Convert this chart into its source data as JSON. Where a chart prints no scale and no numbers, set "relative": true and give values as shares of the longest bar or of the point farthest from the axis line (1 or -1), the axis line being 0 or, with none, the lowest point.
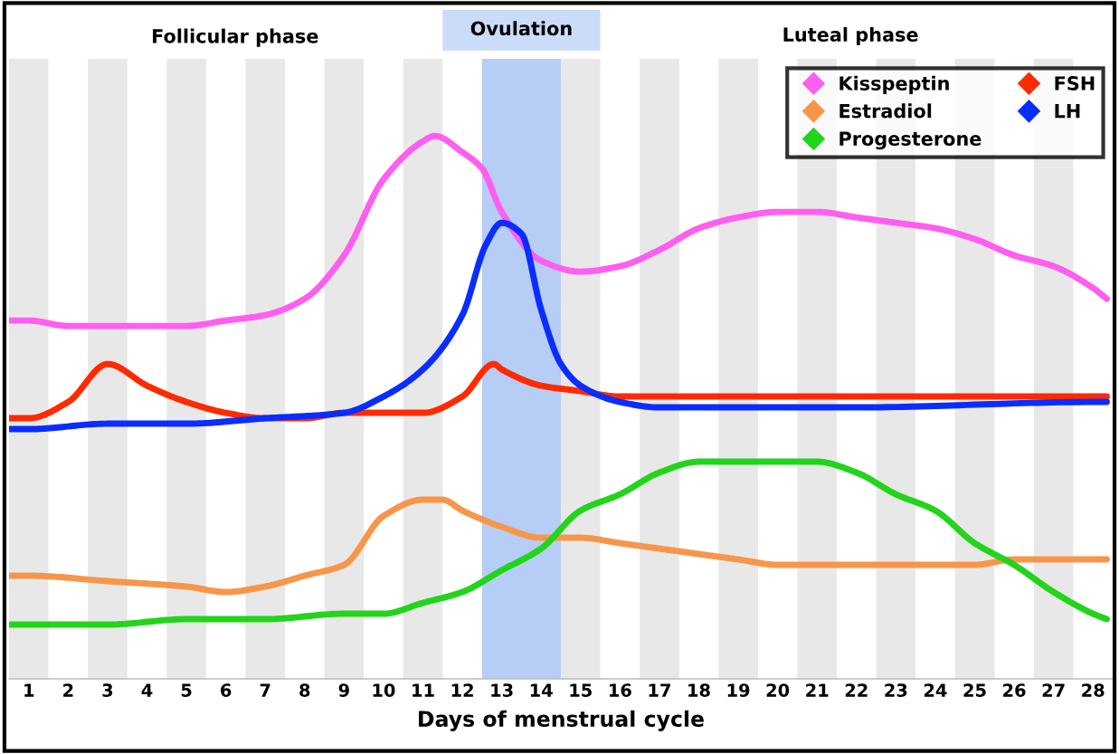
{
  "chart_data": {
    "type": "line",
    "relative": true,
    "xlabel": "Days of menstrual cycle",
    "annotations": [
      "Follicular phase",
      "Luteal phase"
    ],
    "xlim": [
      0.5,
      28.5
    ],
    "xticks": [
      1,
      2,
      3,
      4,
      5,
      6,
      7,
      8,
      9,
      10,
      11,
      12,
      13,
      14,
      15,
      16,
      17,
      18,
      19,
      20,
      21,
      22,
      23,
      24,
      25,
      26,
      27,
      28
    ],
    "grid": false,
    "legend": "top right",
    "line_style": "solid",
    "marker": "none",
    "bands": [
      {
        "axis": "x",
        "from": 0.5,
        "to": 1.5,
        "color": "#e8e8e8"
      },
      {
        "axis": "x",
        "from": 2.5,
        "to": 3.5,
        "color": "#e8e8e8"
      },
      {
        "axis": "x",
        "from": 4.5,
        "to": 5.5,
        "color": "#e8e8e8"
      },
      {
        "axis": "x",
        "from": 6.5,
        "to": 7.5,
        "color": "#e8e8e8"
      },
      {
        "axis": "x",
        "from": 8.5,
        "to": 9.5,
        "color": "#e8e8e8"
      },
      {
        "axis": "x",
        "from": 10.5,
        "to": 11.5,
        "color": "#e8e8e8"
      },
      {
        "axis": "x",
        "from": 14.5,
        "to": 15.5,
        "color": "#e8e8e8"
      },
      {
        "axis": "x",
        "from": 16.5,
        "to": 17.5,
        "color": "#e8e8e8"
      },
      {
        "axis": "x",
        "from": 18.5,
        "to": 19.5,
        "color": "#e8e8e8"
      },
      {
        "axis": "x",
        "from": 20.5,
        "to": 21.5,
        "color": "#e8e8e8"
      },
      {
        "axis": "x",
        "from": 22.5,
        "to": 23.5,
        "color": "#e8e8e8"
      },
      {
        "axis": "x",
        "from": 24.5,
        "to": 25.5,
        "color": "#e8e8e8"
      },
      {
        "axis": "x",
        "from": 26.5,
        "to": 27.5,
        "color": "#e8e8e8"
      },
      {
        "axis": "x",
        "from": 12.5,
        "to": 14.5,
        "color": "#a9c4f5",
        "label": "Ovulation"
      }
    ],
    "series": [
      {
        "name": "Kisspeptin",
        "color": "#ff5ef0",
        "x": [
          0.5,
          1,
          2,
          3,
          4,
          5,
          6,
          7,
          8,
          9,
          10,
          11,
          11.3,
          12,
          12.5,
          13,
          14,
          15,
          16,
          17,
          18,
          19,
          20,
          21,
          22,
          23,
          24,
          25,
          26,
          27,
          28,
          28.35
        ],
        "values": [
          0.66,
          0.66,
          0.65,
          0.65,
          0.65,
          0.65,
          0.66,
          0.67,
          0.7,
          0.78,
          0.92,
          0.99,
          1,
          0.97,
          0.94,
          0.86,
          0.77,
          0.75,
          0.76,
          0.79,
          0.83,
          0.85,
          0.86,
          0.86,
          0.85,
          0.84,
          0.83,
          0.81,
          0.78,
          0.76,
          0.72,
          0.7
        ]
      },
      {
        "name": "Estradiol",
        "color": "#f7964a",
        "x": [
          0.5,
          1,
          3,
          5,
          6,
          7,
          8,
          9,
          10,
          11,
          11.5,
          12,
          13,
          14,
          15,
          16,
          17,
          18,
          19,
          20,
          22,
          24,
          25,
          26,
          27,
          28,
          28.35
        ],
        "values": [
          0.19,
          0.19,
          0.18,
          0.17,
          0.16,
          0.17,
          0.19,
          0.21,
          0.3,
          0.33,
          0.33,
          0.31,
          0.28,
          0.26,
          0.26,
          0.25,
          0.24,
          0.23,
          0.22,
          0.21,
          0.21,
          0.21,
          0.21,
          0.22,
          0.22,
          0.22,
          0.22
        ]
      },
      {
        "name": "Progesterone",
        "color": "#22d41a",
        "x": [
          0.5,
          1,
          3,
          5,
          7,
          9,
          10,
          11,
          12,
          13,
          14,
          15,
          16,
          17,
          18,
          19,
          20,
          21,
          22,
          23,
          24,
          25,
          26,
          27,
          28,
          28.35
        ],
        "values": [
          0.1,
          0.1,
          0.1,
          0.11,
          0.11,
          0.12,
          0.12,
          0.14,
          0.16,
          0.2,
          0.24,
          0.31,
          0.34,
          0.38,
          0.4,
          0.4,
          0.4,
          0.4,
          0.38,
          0.34,
          0.31,
          0.25,
          0.21,
          0.16,
          0.12,
          0.11
        ]
      },
      {
        "name": "FSH",
        "color": "#ff2a00",
        "x": [
          0.5,
          1,
          2,
          3,
          4,
          5,
          6,
          7,
          8,
          9,
          10,
          11,
          12,
          12.8,
          13,
          14,
          15,
          16,
          17,
          20,
          24,
          28,
          28.35
        ],
        "values": [
          0.48,
          0.48,
          0.51,
          0.58,
          0.54,
          0.51,
          0.49,
          0.48,
          0.48,
          0.49,
          0.49,
          0.49,
          0.52,
          0.58,
          0.57,
          0.54,
          0.53,
          0.52,
          0.52,
          0.52,
          0.52,
          0.52,
          0.52
        ]
      },
      {
        "name": "LH",
        "color": "#0a2dff",
        "x": [
          0.5,
          1,
          3,
          5,
          7,
          9,
          10,
          11,
          12,
          12.6,
          13,
          13.5,
          14,
          14.5,
          15,
          16,
          17,
          18,
          22,
          28,
          28.35
        ],
        "values": [
          0.46,
          0.46,
          0.47,
          0.47,
          0.48,
          0.49,
          0.52,
          0.57,
          0.67,
          0.8,
          0.84,
          0.82,
          0.68,
          0.58,
          0.54,
          0.51,
          0.5,
          0.5,
          0.5,
          0.51,
          0.51
        ]
      }
    ]
  }
}
